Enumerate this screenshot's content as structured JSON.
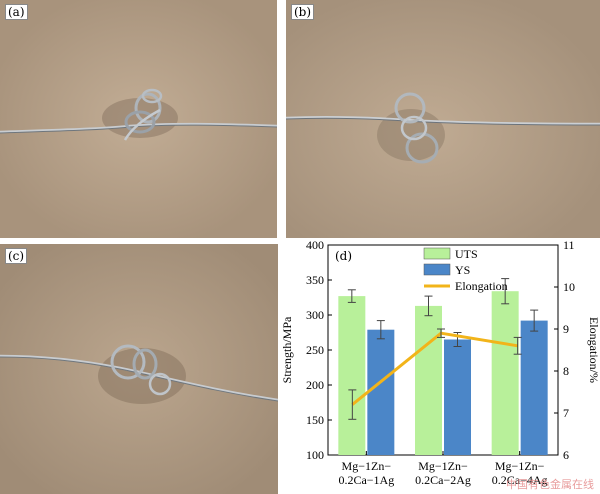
{
  "panels": {
    "a": {
      "label": "(a)"
    },
    "b": {
      "label": "(b)"
    },
    "c": {
      "label": "(c)"
    },
    "d": {
      "label": "(d)"
    }
  },
  "chart_data": {
    "type": "bar",
    "categories": [
      "Mg-1Zn-0.2Ca-1Ag",
      "Mg-1Zn-0.2Ca-2Ag",
      "Mg-1Zn-0.2Ca-4Ag"
    ],
    "category_lines": [
      [
        "Mg−1Zn−",
        "0.2Ca−1Ag"
      ],
      [
        "Mg−1Zn−",
        "0.2Ca−2Ag"
      ],
      [
        "Mg−1Zn−",
        "0.2Ca−4Ag"
      ]
    ],
    "series": [
      {
        "name": "UTS",
        "type": "bar",
        "axis": "left",
        "color": "#b8f09a",
        "values": [
          327,
          313,
          334
        ],
        "errors": [
          9,
          14,
          18
        ]
      },
      {
        "name": "YS",
        "type": "bar",
        "axis": "left",
        "color": "#4b86c8",
        "values": [
          279,
          265,
          292
        ],
        "errors": [
          13,
          10,
          15
        ]
      },
      {
        "name": "Elongation",
        "type": "line",
        "axis": "right",
        "color": "#f2b41a",
        "values": [
          7.2,
          8.9,
          8.6
        ],
        "errors": [
          0.35,
          0.1,
          0.2
        ]
      }
    ],
    "ylabel": "Strength/MPa",
    "ylabel_right": "Elongation/%",
    "ylim": [
      100,
      400
    ],
    "yticks": [
      "100",
      "150",
      "200",
      "250",
      "300",
      "350",
      "400"
    ],
    "ylim_right": [
      6,
      11
    ],
    "yticks_right": [
      "6",
      "7",
      "8",
      "9",
      "10",
      "11"
    ],
    "legend_position": "top"
  },
  "watermark": "中国有色金属在线"
}
